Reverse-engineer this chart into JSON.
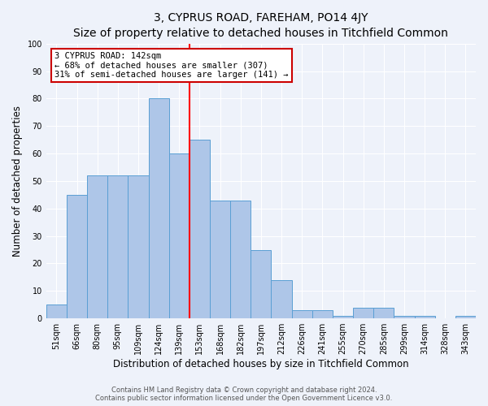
{
  "title": "3, CYPRUS ROAD, FAREHAM, PO14 4JY",
  "subtitle": "Size of property relative to detached houses in Titchfield Common",
  "xlabel": "Distribution of detached houses by size in Titchfield Common",
  "ylabel": "Number of detached properties",
  "categories": [
    "51sqm",
    "66sqm",
    "80sqm",
    "95sqm",
    "109sqm",
    "124sqm",
    "139sqm",
    "153sqm",
    "168sqm",
    "182sqm",
    "197sqm",
    "212sqm",
    "226sqm",
    "241sqm",
    "255sqm",
    "270sqm",
    "285sqm",
    "299sqm",
    "314sqm",
    "328sqm",
    "343sqm"
  ],
  "values": [
    5,
    45,
    52,
    52,
    52,
    80,
    60,
    65,
    43,
    43,
    25,
    14,
    3,
    3,
    1,
    4,
    4,
    1,
    1,
    0,
    1
  ],
  "bar_color": "#aec6e8",
  "bar_edge_color": "#5a9fd4",
  "red_line_x": 6.5,
  "annotation_title": "3 CYPRUS ROAD: 142sqm",
  "annotation_line1": "← 68% of detached houses are smaller (307)",
  "annotation_line2": "31% of semi-detached houses are larger (141) →",
  "annotation_box_color": "#ffffff",
  "annotation_box_edge": "#cc0000",
  "ylim": [
    0,
    100
  ],
  "yticks": [
    0,
    10,
    20,
    30,
    40,
    50,
    60,
    70,
    80,
    90,
    100
  ],
  "footer1": "Contains HM Land Registry data © Crown copyright and database right 2024.",
  "footer2": "Contains public sector information licensed under the Open Government Licence v3.0.",
  "bg_color": "#eef2fa",
  "grid_color": "#ffffff",
  "title_fontsize": 10,
  "subtitle_fontsize": 9,
  "xlabel_fontsize": 8.5,
  "ylabel_fontsize": 8.5,
  "tick_fontsize": 7,
  "annotation_fontsize": 7.5,
  "footer_fontsize": 6
}
